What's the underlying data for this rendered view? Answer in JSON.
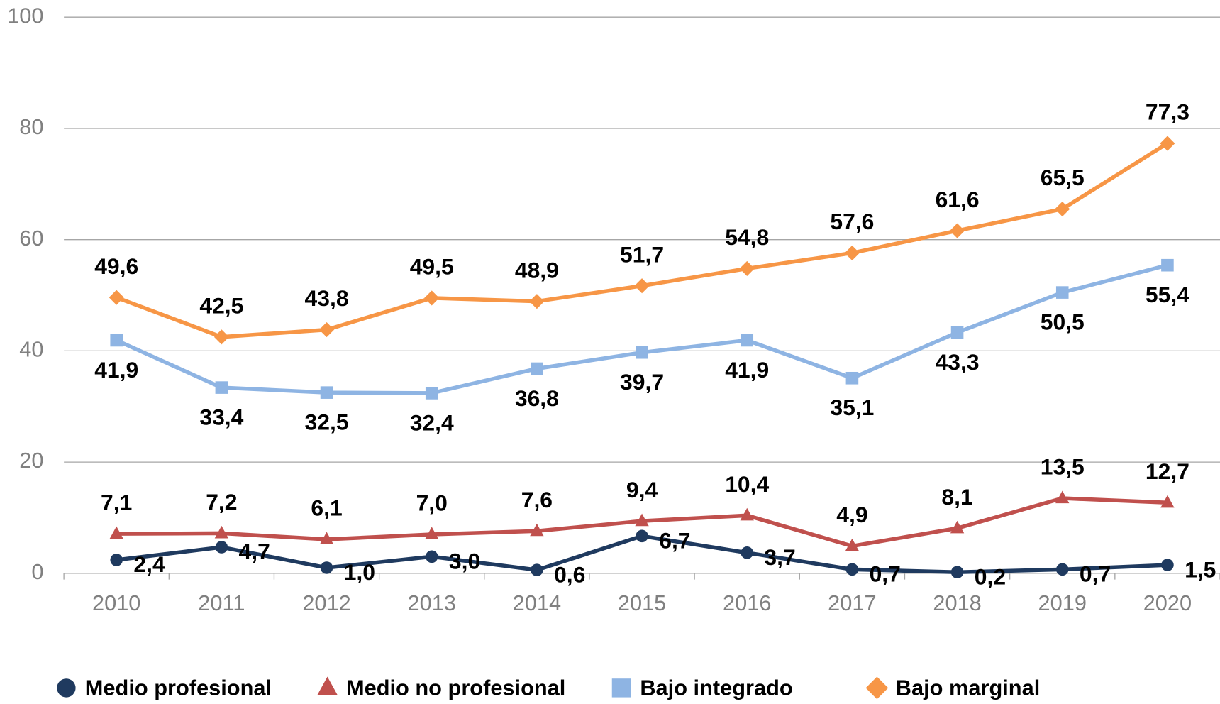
{
  "chart_data": {
    "type": "line",
    "categories": [
      "2010",
      "2011",
      "2012",
      "2013",
      "2014",
      "2015",
      "2016",
      "2017",
      "2018",
      "2019",
      "2020"
    ],
    "series": [
      {
        "name": "Medio profesional",
        "color": "#1f3a5f",
        "marker": "circle",
        "label_pos": "right",
        "values": [
          2.4,
          4.7,
          1.0,
          3.0,
          0.6,
          6.7,
          3.7,
          0.7,
          0.2,
          0.7,
          1.5
        ],
        "value_labels": [
          "2,4",
          "4,7",
          "1,0",
          "3,0",
          "0,6",
          "6,7",
          "3,7",
          "0,7",
          "0,2",
          "0,7",
          "1,5"
        ]
      },
      {
        "name": "Medio no profesional",
        "color": "#c0504d",
        "marker": "triangle",
        "label_pos": "above",
        "values": [
          7.1,
          7.2,
          6.1,
          7.0,
          7.6,
          9.4,
          10.4,
          4.9,
          8.1,
          13.5,
          12.7
        ],
        "value_labels": [
          "7,1",
          "7,2",
          "6,1",
          "7,0",
          "7,6",
          "9,4",
          "10,4",
          "4,9",
          "8,1",
          "13,5",
          "12,7"
        ]
      },
      {
        "name": "Bajo integrado",
        "color": "#8eb4e3",
        "marker": "square",
        "label_pos": "below",
        "values": [
          41.9,
          33.4,
          32.5,
          32.4,
          36.8,
          39.7,
          41.9,
          35.1,
          43.3,
          50.5,
          55.4
        ],
        "value_labels": [
          "41,9",
          "33,4",
          "32,5",
          "32,4",
          "36,8",
          "39,7",
          "41,9",
          "35,1",
          "43,3",
          "50,5",
          "55,4"
        ]
      },
      {
        "name": "Bajo marginal",
        "color": "#f79646",
        "marker": "diamond",
        "label_pos": "above",
        "values": [
          49.6,
          42.5,
          43.8,
          49.5,
          48.9,
          51.7,
          54.8,
          57.6,
          61.6,
          65.5,
          77.3
        ],
        "value_labels": [
          "49,6",
          "42,5",
          "43,8",
          "49,5",
          "48,9",
          "51,7",
          "54,8",
          "57,6",
          "61,6",
          "65,5",
          "77,3"
        ]
      }
    ],
    "ylim": [
      0,
      100
    ],
    "yticks": [
      0,
      20,
      40,
      60,
      80,
      100
    ],
    "grid": true,
    "legend": "bottom"
  }
}
